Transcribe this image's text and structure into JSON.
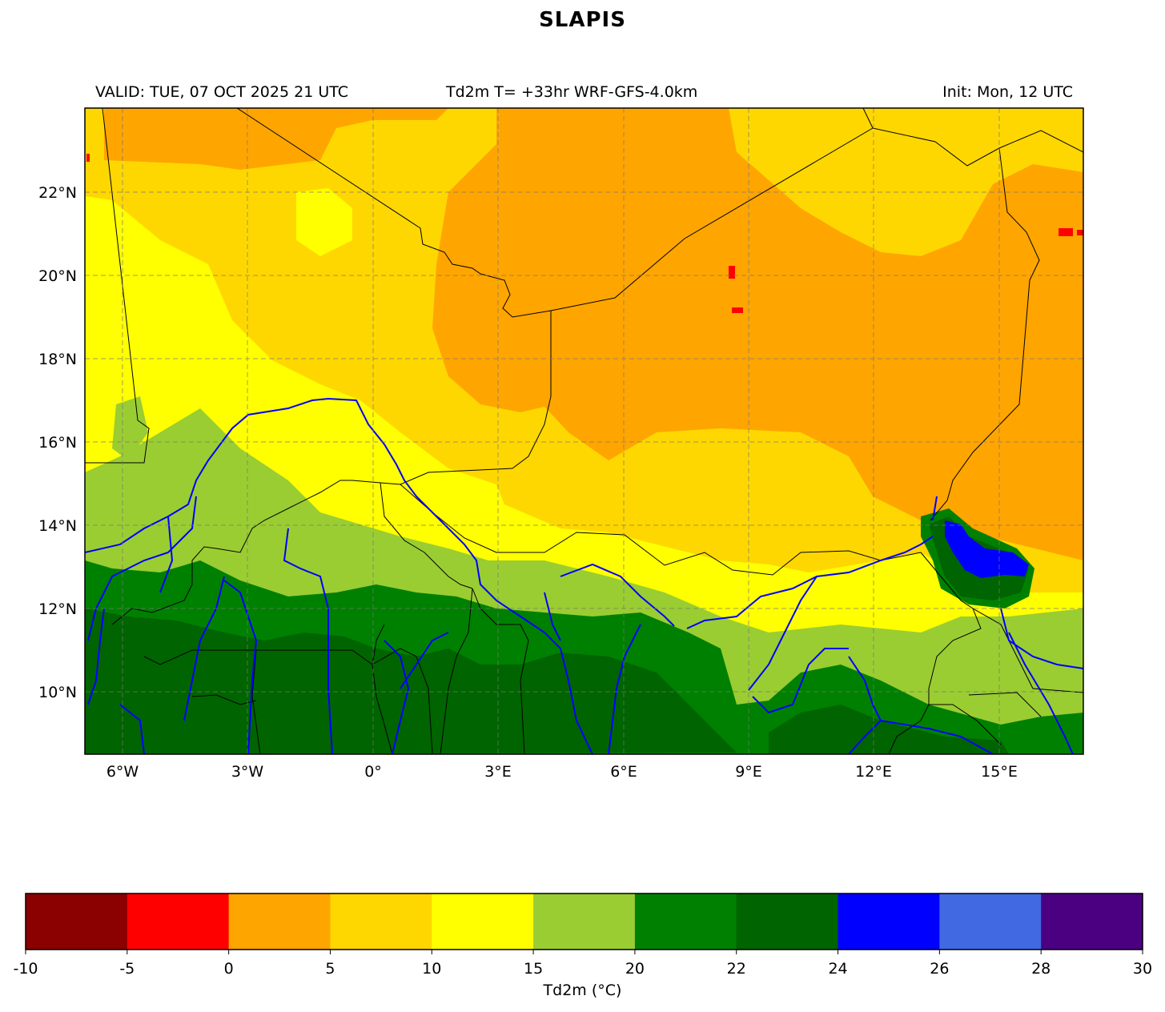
{
  "title": "SLAPIS",
  "header": {
    "valid": "VALID: TUE, 07 OCT 2025 21 UTC",
    "center": "Td2m T= +33hr WRF-GFS-4.0km",
    "init": "Init: Mon, 12 UTC"
  },
  "map": {
    "extent": {
      "lon_min": -6.9,
      "lon_max": 17.0,
      "lat_min": 8.5,
      "lat_max": 24.0
    },
    "lon_ticks": [
      -6,
      -3,
      0,
      3,
      6,
      9,
      12,
      15
    ],
    "lon_labels": [
      "6°W",
      "3°W",
      "0°",
      "3°E",
      "6°E",
      "9°E",
      "12°E",
      "15°E"
    ],
    "lat_ticks": [
      10,
      12,
      14,
      16,
      18,
      20,
      22
    ],
    "lat_labels": [
      "10°N",
      "12°N",
      "14°N",
      "16°N",
      "18°N",
      "20°N",
      "22°N"
    ],
    "gridlines": true
  },
  "colorbar": {
    "label": "Td2m (°C)",
    "bounds": [
      -10,
      -5,
      0,
      5,
      10,
      15,
      20,
      22,
      24,
      26,
      28,
      30
    ],
    "tick_labels": [
      "-10",
      "-5",
      "0",
      "5",
      "10",
      "15",
      "20",
      "22",
      "24",
      "26",
      "28",
      "30"
    ],
    "colors": [
      "#8b0000",
      "#ff0000",
      "#ffa500",
      "#ffd700",
      "#ffff00",
      "#9acd32",
      "#008000",
      "#006400",
      "#0000ff",
      "#4169e1",
      "#4b0082"
    ]
  }
}
